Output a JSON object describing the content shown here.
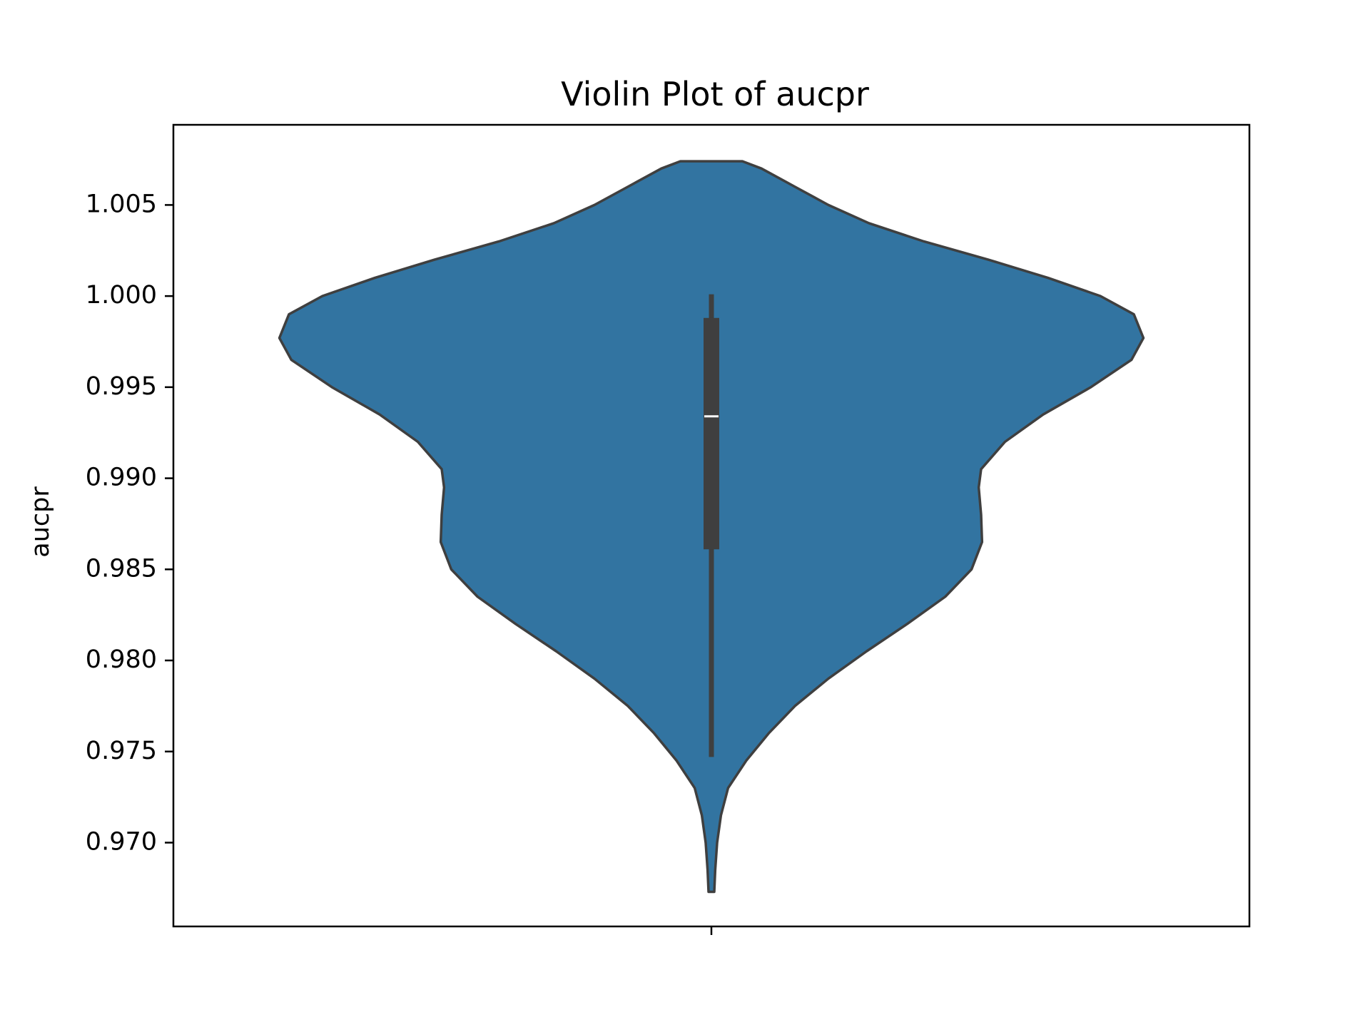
{
  "chart_data": {
    "type": "violin",
    "title": "Violin Plot of aucpr",
    "xlabel": "",
    "ylabel": "aucpr",
    "ylim": [
      0.9654,
      1.0094
    ],
    "yticks": [
      0.97,
      0.975,
      0.98,
      0.985,
      0.99,
      0.995,
      1.0,
      1.005
    ],
    "ytick_labels": [
      "0.970",
      "0.975",
      "0.980",
      "0.985",
      "0.990",
      "0.995",
      "1.000",
      "1.005"
    ],
    "xticks": [
      ""
    ],
    "grid": false,
    "legend": "none",
    "colors": {
      "body_fill": "#3274a1",
      "outline": "#3f3f3f",
      "box": "#3f3f3f",
      "median": "#ffffff",
      "axes": "#000000"
    },
    "violin": {
      "kde_range": [
        0.9673,
        1.0074
      ],
      "density_profile": [
        {
          "y": 1.0074,
          "half_width": 0.065
        },
        {
          "y": 1.007,
          "half_width": 0.105
        },
        {
          "y": 1.006,
          "half_width": 0.175
        },
        {
          "y": 1.005,
          "half_width": 0.245
        },
        {
          "y": 1.004,
          "half_width": 0.33
        },
        {
          "y": 1.003,
          "half_width": 0.445
        },
        {
          "y": 1.002,
          "half_width": 0.58
        },
        {
          "y": 1.001,
          "half_width": 0.705
        },
        {
          "y": 1.0,
          "half_width": 0.815
        },
        {
          "y": 0.999,
          "half_width": 0.885
        },
        {
          "y": 0.9977,
          "half_width": 0.905
        },
        {
          "y": 0.9965,
          "half_width": 0.88
        },
        {
          "y": 0.995,
          "half_width": 0.795
        },
        {
          "y": 0.9935,
          "half_width": 0.695
        },
        {
          "y": 0.992,
          "half_width": 0.615
        },
        {
          "y": 0.9905,
          "half_width": 0.565
        },
        {
          "y": 0.9895,
          "half_width": 0.56
        },
        {
          "y": 0.988,
          "half_width": 0.565
        },
        {
          "y": 0.9865,
          "half_width": 0.567
        },
        {
          "y": 0.985,
          "half_width": 0.545
        },
        {
          "y": 0.9835,
          "half_width": 0.49
        },
        {
          "y": 0.982,
          "half_width": 0.41
        },
        {
          "y": 0.9805,
          "half_width": 0.325
        },
        {
          "y": 0.979,
          "half_width": 0.245
        },
        {
          "y": 0.9775,
          "half_width": 0.175
        },
        {
          "y": 0.976,
          "half_width": 0.12
        },
        {
          "y": 0.9745,
          "half_width": 0.073
        },
        {
          "y": 0.973,
          "half_width": 0.035
        },
        {
          "y": 0.9715,
          "half_width": 0.02
        },
        {
          "y": 0.97,
          "half_width": 0.012
        },
        {
          "y": 0.9685,
          "half_width": 0.008
        },
        {
          "y": 0.9673,
          "half_width": 0.006
        }
      ],
      "min": 0.9747,
      "q1": 0.9861,
      "median": 0.9934,
      "q3": 0.9988,
      "max": 1.0001
    }
  }
}
